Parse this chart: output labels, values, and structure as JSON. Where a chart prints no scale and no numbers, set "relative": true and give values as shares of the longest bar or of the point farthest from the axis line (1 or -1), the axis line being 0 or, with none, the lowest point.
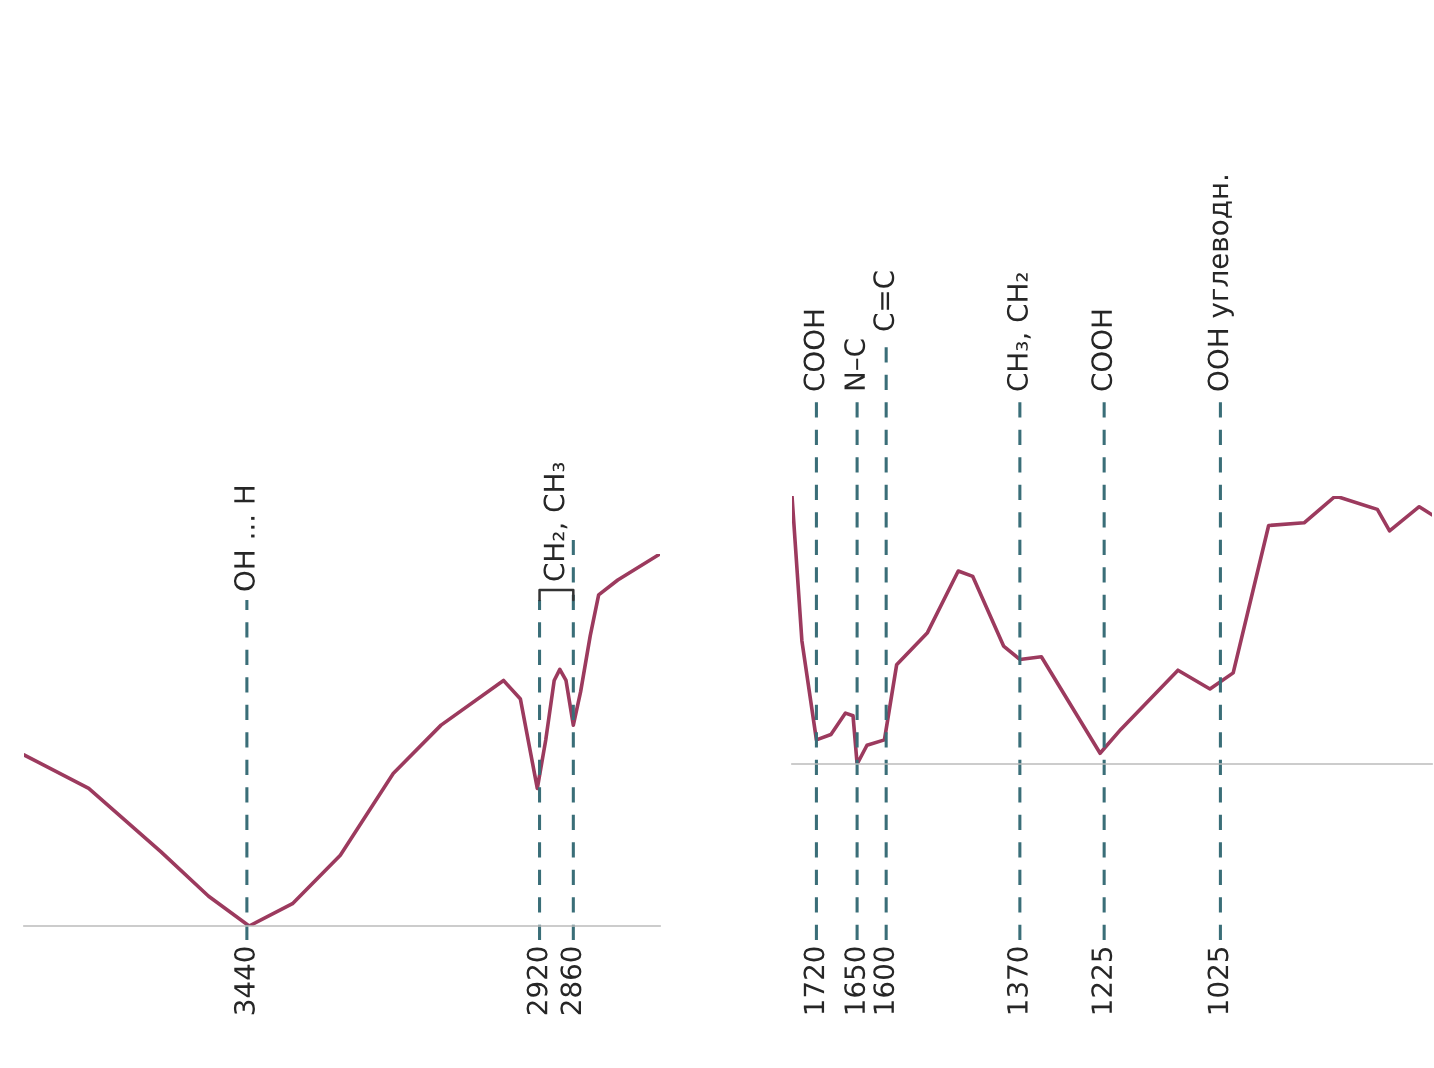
{
  "chart_data": [
    {
      "type": "line",
      "relative": true,
      "x": [
        3836,
        3721,
        3593,
        3508,
        3436,
        3359,
        3274,
        3180,
        3095,
        2984,
        2954,
        2924,
        2909,
        2894,
        2884,
        2873,
        2860,
        2847,
        2830,
        2815,
        2781,
        2706
      ],
      "series": [
        {
          "color": "#9c3a5e",
          "values": [
            0.46,
            0.37,
            0.2,
            0.08,
            0,
            0.06,
            0.19,
            0.41,
            0.54,
            0.66,
            0.61,
            0.37,
            0.5,
            0.66,
            0.69,
            0.66,
            0.54,
            0.63,
            0.78,
            0.89,
            0.93,
            1.0
          ]
        }
      ],
      "xlim": [
        3836,
        2706
      ],
      "xticks": [
        3440,
        2920,
        2860
      ],
      "tick_labels": "x",
      "ref_lines": [
        {
          "axis": "x",
          "value": 3440,
          "label": "OH ... H",
          "color": "#3a6e78",
          "line_style": "dashed"
        },
        {
          "axis": "x",
          "value": 2920,
          "label": null,
          "color": "#3a6e78",
          "line_style": "dashed"
        },
        {
          "axis": "x",
          "value": 2860,
          "label": null,
          "color": "#3a6e78",
          "line_style": "dashed"
        }
      ],
      "annotations": [
        "CH₂, CH₃"
      ]
    },
    {
      "type": "line",
      "relative": true,
      "x": [
        1762,
        1745,
        1720,
        1695,
        1670,
        1657,
        1650,
        1633,
        1603,
        1582,
        1529,
        1476,
        1451,
        1398,
        1370,
        1333,
        1232,
        1196,
        1098,
        1043,
        1003,
        942,
        881,
        827,
        755,
        734,
        683,
        661
      ],
      "series": [
        {
          "color": "#9c3a5e",
          "values": [
            1.0,
            0.46,
            0.09,
            0.11,
            0.19,
            0.18,
            0,
            0.07,
            0.09,
            0.37,
            0.49,
            0.72,
            0.7,
            0.44,
            0.39,
            0.4,
            0.04,
            0.13,
            0.35,
            0.28,
            0.34,
            0.89,
            0.9,
            1.0,
            0.95,
            0.87,
            0.96,
            0.93
          ]
        }
      ],
      "xlim": [
        1762,
        661
      ],
      "xticks": [
        1720,
        1650,
        1600,
        1370,
        1225,
        1025
      ],
      "tick_labels": "x",
      "ref_lines": [
        {
          "axis": "x",
          "value": 1720,
          "label": "COOH",
          "color": "#3a6e78",
          "line_style": "dashed"
        },
        {
          "axis": "x",
          "value": 1650,
          "label": "N–C",
          "color": "#3a6e78",
          "line_style": "dashed"
        },
        {
          "axis": "x",
          "value": 1600,
          "label": "C=C",
          "color": "#3a6e78",
          "line_style": "dashed"
        },
        {
          "axis": "x",
          "value": 1370,
          "label": "CH₃, CH₂",
          "color": "#3a6e78",
          "line_style": "dashed"
        },
        {
          "axis": "x",
          "value": 1225,
          "label": "COOH",
          "color": "#3a6e78",
          "line_style": "dashed"
        },
        {
          "axis": "x",
          "value": 1025,
          "label": "OOH углеводн.",
          "color": "#3a6e78",
          "line_style": "dashed"
        }
      ]
    }
  ]
}
